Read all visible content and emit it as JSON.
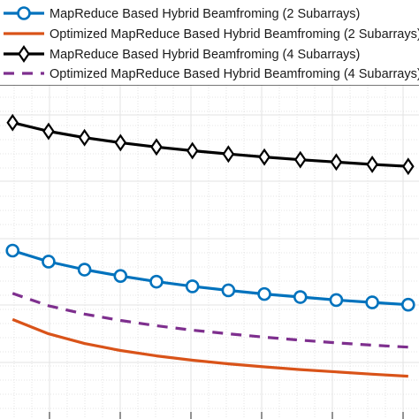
{
  "chart_data": {
    "type": "line",
    "title": "",
    "xlabel": "",
    "ylabel": "",
    "x": [
      1,
      2,
      3,
      4,
      5,
      6,
      7,
      8,
      9,
      10,
      11,
      12
    ],
    "xlim": [
      1,
      12.3
    ],
    "ylim": [
      0,
      10
    ],
    "grid": "major-and-minor",
    "legend_position": "top-left",
    "series": [
      {
        "name": "MapReduce Based Hybrid Beamfroming (2 Subarrays)",
        "color": "#0072BD",
        "line_style": "solid",
        "marker": "circle",
        "values": [
          5.04,
          4.71,
          4.47,
          4.28,
          4.11,
          3.97,
          3.85,
          3.74,
          3.65,
          3.56,
          3.49,
          3.42
        ]
      },
      {
        "name": "Optimized MapReduce Based Hybrid Beamfroming (2 Subarrays)",
        "color": "#D95319",
        "line_style": "solid",
        "marker": "none",
        "values": [
          2.98,
          2.55,
          2.26,
          2.05,
          1.89,
          1.76,
          1.65,
          1.56,
          1.48,
          1.41,
          1.34,
          1.28
        ]
      },
      {
        "name": "MapReduce Based Hybrid Beamfroming (4 Subarrays)",
        "color": "#000000",
        "line_style": "solid",
        "marker": "diamond",
        "values": [
          8.87,
          8.61,
          8.42,
          8.27,
          8.14,
          8.03,
          7.93,
          7.84,
          7.76,
          7.69,
          7.62,
          7.56
        ]
      },
      {
        "name": "Optimized MapReduce Based Hybrid Beamfroming (4 Subarrays)",
        "color": "#7E2F8E",
        "line_style": "dashed",
        "marker": "none",
        "values": [
          3.76,
          3.39,
          3.14,
          2.95,
          2.79,
          2.66,
          2.55,
          2.45,
          2.36,
          2.28,
          2.21,
          2.15
        ]
      }
    ]
  }
}
